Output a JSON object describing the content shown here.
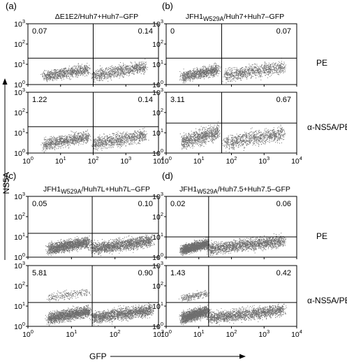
{
  "figure": {
    "ylabel": "NS5A",
    "xlabel": "GFP",
    "row_labels": [
      "PE",
      "α-NS5A/PE"
    ]
  },
  "chart_data": [
    {
      "type": "scatter",
      "panel": "a",
      "title": "ΔE1E2/Huh7+Huh7–GFP",
      "row_label": "PE",
      "xscale": "log",
      "yscale": "log",
      "xlim": [
        1,
        10000
      ],
      "ylim": [
        1,
        1000
      ],
      "xticks": [],
      "yticks": [
        "10^0",
        "10^1",
        "10^2",
        "10^3"
      ],
      "gate_x": 100,
      "gate_y": 20,
      "quadrant_values": {
        "upper_left": "0.07",
        "upper_right": "0.14"
      },
      "series": [
        {
          "population": "GFP-negative",
          "x_range": [
            3,
            70
          ],
          "y_range": [
            1.2,
            10
          ]
        },
        {
          "population": "GFP-positive",
          "x_range": [
            100,
            4000
          ],
          "y_range": [
            1.2,
            15
          ]
        }
      ]
    },
    {
      "type": "scatter",
      "panel": "b",
      "title": "JFH1",
      "title_sub": "W529A",
      "title_rest": "/Huh7+Huh7–GFP",
      "row_label": "PE",
      "xscale": "log",
      "yscale": "log",
      "xlim": [
        1,
        10000
      ],
      "ylim": [
        1,
        1000
      ],
      "xticks": [],
      "yticks": [
        "10^0",
        "10^1",
        "10^2",
        "10^3"
      ],
      "gate_x": 50,
      "gate_y": 20,
      "quadrant_values": {
        "upper_left": "0",
        "upper_right": "0.07"
      },
      "series": [
        {
          "population": "GFP-negative",
          "x_range": [
            3,
            40
          ],
          "y_range": [
            1.2,
            10
          ]
        },
        {
          "population": "GFP-positive",
          "x_range": [
            60,
            4000
          ],
          "y_range": [
            1.2,
            15
          ]
        }
      ]
    },
    {
      "type": "scatter",
      "panel": "a",
      "row_label": "α-NS5A/PE",
      "xscale": "log",
      "yscale": "log",
      "xlim": [
        1,
        10000
      ],
      "ylim": [
        1,
        1000
      ],
      "xticks": [
        "10^0",
        "10^1",
        "10^2",
        "10^3",
        "10^4"
      ],
      "yticks": [
        "10^0",
        "10^1",
        "10^2",
        "10^3"
      ],
      "gate_x": 100,
      "gate_y": 20,
      "quadrant_values": {
        "upper_left": "1.22",
        "upper_right": "0.14"
      },
      "series": [
        {
          "population": "GFP-negative",
          "x_range": [
            3,
            70
          ],
          "y_range": [
            1.2,
            12
          ]
        },
        {
          "population": "GFP-positive",
          "x_range": [
            100,
            4000
          ],
          "y_range": [
            1.2,
            15
          ]
        }
      ]
    },
    {
      "type": "scatter",
      "panel": "b",
      "row_label": "α-NS5A/PE",
      "xscale": "log",
      "yscale": "log",
      "xlim": [
        1,
        10000
      ],
      "ylim": [
        1,
        1000
      ],
      "xticks": [
        "10^0",
        "10^1",
        "10^2",
        "10^3",
        "10^4"
      ],
      "yticks": [
        "10^0",
        "10^1",
        "10^2",
        "10^3"
      ],
      "gate_x": 50,
      "gate_y": 30,
      "quadrant_values": {
        "upper_left": "3.11",
        "upper_right": "0.67"
      },
      "series": [
        {
          "population": "GFP-negative",
          "x_range": [
            3,
            40
          ],
          "y_range": [
            1.2,
            25
          ]
        },
        {
          "population": "GFP-positive",
          "x_range": [
            60,
            4000
          ],
          "y_range": [
            1.2,
            20
          ]
        }
      ]
    },
    {
      "type": "scatter",
      "panel": "c",
      "title": "JFH1",
      "title_sub": "W529A",
      "title_rest": "/Huh7L+Huh7L–GFP",
      "row_label": "",
      "xscale": "log",
      "yscale": "log",
      "xlim": [
        1,
        1000
      ],
      "ylim": [
        1,
        1000
      ],
      "xticks": [],
      "yticks": [
        "10^0",
        "10^1",
        "10^2",
        "10^3"
      ],
      "gate_x": 30,
      "gate_y": 15,
      "quadrant_values": {
        "upper_left": "0.05",
        "upper_right": "0.10"
      },
      "series": [
        {
          "population": "GFP-negative",
          "x_range": [
            3,
            25
          ],
          "y_range": [
            1.2,
            10
          ]
        },
        {
          "population": "GFP-positive",
          "x_range": [
            30,
            700
          ],
          "y_range": [
            1.2,
            12
          ]
        }
      ]
    },
    {
      "type": "scatter",
      "panel": "d",
      "title": "JFH1",
      "title_sub": "W529A",
      "title_rest": "/Huh7.5+Huh7.5–GFP",
      "row_label": "PE",
      "xscale": "log",
      "yscale": "log",
      "xlim": [
        1,
        10000
      ],
      "ylim": [
        1,
        1000
      ],
      "xticks": [],
      "yticks": [
        "10^0",
        "10^1",
        "10^2",
        "10^3"
      ],
      "gate_x": 20,
      "gate_y": 10,
      "quadrant_values": {
        "upper_left": "0.02",
        "upper_right": "0.06"
      },
      "series": [
        {
          "population": "GFP-negative",
          "x_range": [
            3,
            18
          ],
          "y_range": [
            1.2,
            8
          ]
        },
        {
          "population": "GFP-positive",
          "x_range": [
            20,
            4000
          ],
          "y_range": [
            1.2,
            12
          ]
        }
      ]
    },
    {
      "type": "scatter",
      "panel": "c",
      "row_label": "",
      "xscale": "log",
      "yscale": "log",
      "xlim": [
        1,
        1000
      ],
      "ylim": [
        1,
        1000
      ],
      "xticks": [
        "10^0",
        "10^1",
        "10^2",
        "10^3"
      ],
      "yticks": [
        "10^0",
        "10^1",
        "10^2",
        "10^3"
      ],
      "gate_x": 30,
      "gate_y": 15,
      "quadrant_values": {
        "upper_left": "5.81",
        "upper_right": "0.90"
      },
      "series": [
        {
          "population": "GFP-negative",
          "x_range": [
            3,
            25
          ],
          "y_range": [
            1.2,
            10
          ]
        },
        {
          "population": "NS5A-positive",
          "x_range": [
            3,
            25
          ],
          "y_range": [
            15,
            80
          ]
        },
        {
          "population": "GFP-positive",
          "x_range": [
            30,
            700
          ],
          "y_range": [
            1.2,
            12
          ]
        }
      ]
    },
    {
      "type": "scatter",
      "panel": "d",
      "row_label": "α-NS5A/PE",
      "xscale": "log",
      "yscale": "log",
      "xlim": [
        1,
        10000
      ],
      "ylim": [
        1,
        1000
      ],
      "xticks": [
        "10^0",
        "10^1",
        "10^2",
        "10^3",
        "10^4"
      ],
      "yticks": [
        "10^0",
        "10^1",
        "10^2",
        "10^3"
      ],
      "gate_x": 20,
      "gate_y": 15,
      "quadrant_values": {
        "upper_left": "1.43",
        "upper_right": "0.42"
      },
      "series": [
        {
          "population": "GFP-negative",
          "x_range": [
            3,
            18
          ],
          "y_range": [
            1.2,
            10
          ]
        },
        {
          "population": "NS5A-positive",
          "x_range": [
            3,
            18
          ],
          "y_range": [
            15,
            60
          ]
        },
        {
          "population": "GFP-positive",
          "x_range": [
            20,
            4000
          ],
          "y_range": [
            1.2,
            12
          ]
        }
      ]
    }
  ]
}
